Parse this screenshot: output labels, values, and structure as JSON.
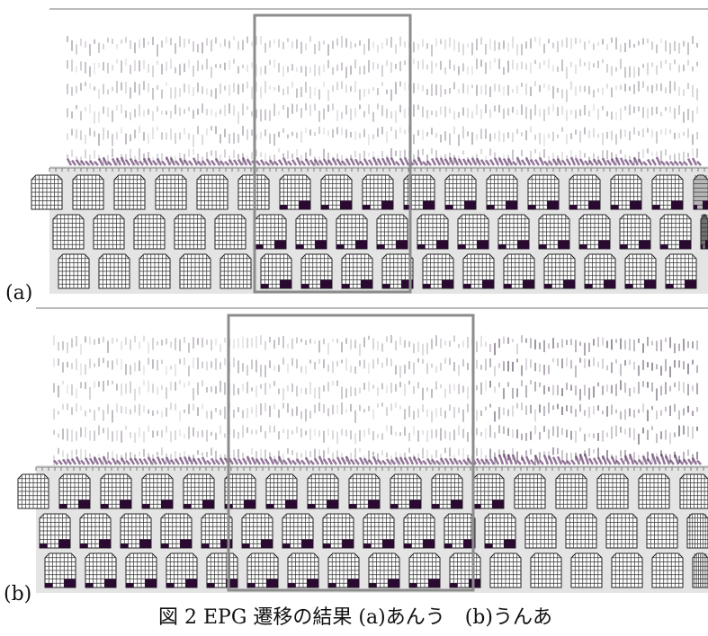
{
  "figure": {
    "panels": [
      {
        "label": "(a)"
      },
      {
        "label": "(b)"
      }
    ],
    "caption": "図 2 EPG 遷移の結果 (a)あんう　(b)うんあ"
  }
}
